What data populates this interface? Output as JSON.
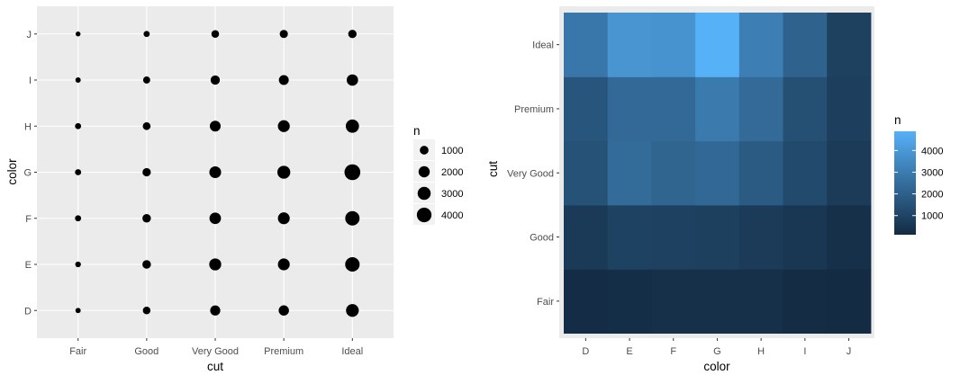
{
  "chart_data": [
    {
      "type": "scatter",
      "x_label": "cut",
      "y_label": "color",
      "x_categories": [
        "Fair",
        "Good",
        "Very Good",
        "Premium",
        "Ideal"
      ],
      "y_categories": [
        "D",
        "E",
        "F",
        "G",
        "H",
        "I",
        "J"
      ],
      "n": [
        [
          163,
          662,
          1513,
          1603,
          2834
        ],
        [
          224,
          933,
          2400,
          2337,
          3903
        ],
        [
          312,
          909,
          2164,
          2331,
          3826
        ],
        [
          314,
          871,
          2299,
          2924,
          4884
        ],
        [
          303,
          702,
          1824,
          2360,
          3115
        ],
        [
          175,
          522,
          1204,
          1428,
          2093
        ],
        [
          119,
          307,
          678,
          808,
          896
        ]
      ],
      "size_legend": {
        "title": "n",
        "breaks": [
          1000,
          2000,
          3000,
          4000
        ],
        "labels": [
          "1000",
          "2000",
          "3000",
          "4000"
        ]
      },
      "grid": true
    },
    {
      "type": "heatmap",
      "x_label": "color",
      "y_label": "cut",
      "x_categories": [
        "D",
        "E",
        "F",
        "G",
        "H",
        "I",
        "J"
      ],
      "y_categories": [
        "Fair",
        "Good",
        "Very Good",
        "Premium",
        "Ideal"
      ],
      "n": [
        [
          163,
          224,
          312,
          314,
          303,
          175,
          119
        ],
        [
          662,
          933,
          909,
          871,
          702,
          522,
          307
        ],
        [
          1513,
          2400,
          2164,
          2299,
          1824,
          1204,
          678
        ],
        [
          1603,
          2337,
          2331,
          2924,
          2360,
          1428,
          808
        ],
        [
          2834,
          3903,
          3826,
          4884,
          3115,
          2093,
          896
        ]
      ],
      "color_legend": {
        "title": "n",
        "breaks": [
          1000,
          2000,
          3000,
          4000
        ],
        "labels": [
          "1000",
          "2000",
          "3000",
          "4000"
        ],
        "low_color": "#132B43",
        "high_color": "#56B1F7"
      }
    }
  ]
}
